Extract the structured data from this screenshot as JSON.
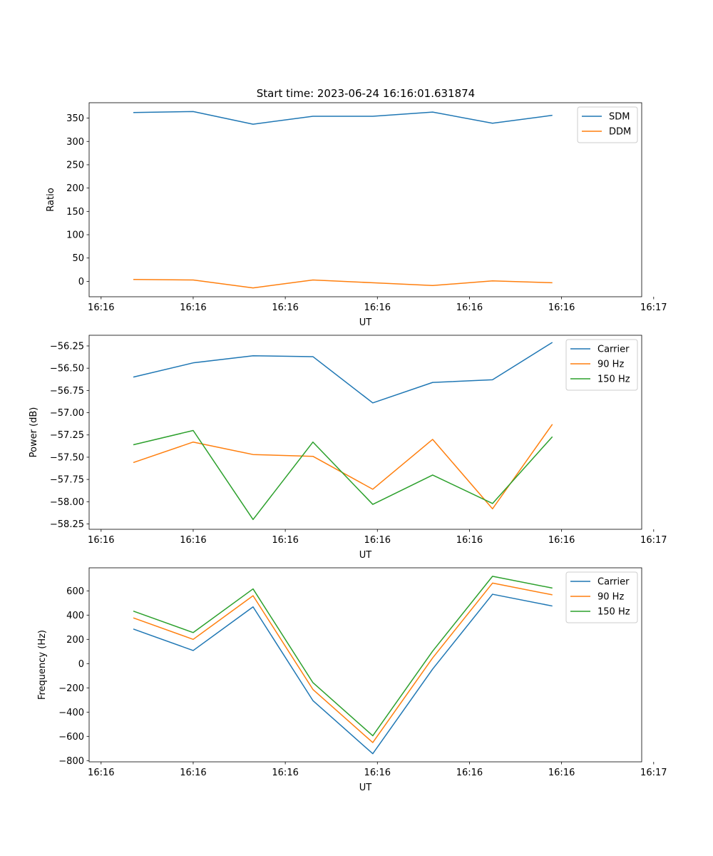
{
  "figure_title": "Start time: 2023-06-24 16:16:01.631874",
  "colors": {
    "c0": "#1f77b4",
    "c1": "#ff7f0e",
    "c2": "#2ca02c"
  },
  "x": [
    1.9,
    2.55,
    3.2,
    3.85,
    4.5,
    5.15,
    5.8,
    6.45
  ],
  "chart_data": [
    {
      "type": "line",
      "title": "Start time: 2023-06-24 16:16:01.631874",
      "xlabel": "UT",
      "ylabel": "Ratio",
      "xlim": [
        1.42,
        7.42
      ],
      "ylim": [
        -33,
        383
      ],
      "xticks": [
        1.55,
        2.55,
        3.55,
        4.55,
        5.55,
        6.55,
        7.55
      ],
      "xticklabels": [
        "16:16",
        "16:16",
        "16:16",
        "16:16",
        "16:16",
        "16:16",
        "16:17"
      ],
      "yticks": [
        0,
        50,
        100,
        150,
        200,
        250,
        300,
        350
      ],
      "yticklabels": [
        "0",
        "50",
        "100",
        "150",
        "200",
        "250",
        "300",
        "350"
      ],
      "legend": "top-right",
      "series": [
        {
          "name": "SDM",
          "color": "#1f77b4",
          "values": [
            362,
            364,
            337,
            354,
            354,
            363,
            339,
            356
          ]
        },
        {
          "name": "DDM",
          "color": "#ff7f0e",
          "values": [
            4,
            3,
            -14,
            3,
            -3,
            -9,
            1,
            -3
          ]
        }
      ]
    },
    {
      "type": "line",
      "xlabel": "UT",
      "ylabel": "Power (dB)",
      "xlim": [
        1.42,
        7.42
      ],
      "ylim": [
        -58.31,
        -56.13
      ],
      "xticks": [
        1.55,
        2.55,
        3.55,
        4.55,
        5.55,
        6.55,
        7.55
      ],
      "xticklabels": [
        "16:16",
        "16:16",
        "16:16",
        "16:16",
        "16:16",
        "16:16",
        "16:17"
      ],
      "yticks": [
        -58.25,
        -58.0,
        -57.75,
        -57.5,
        -57.25,
        -57.0,
        -56.75,
        -56.5,
        -56.25
      ],
      "yticklabels": [
        "−58.25",
        "−58.00",
        "−57.75",
        "−57.50",
        "−57.25",
        "−57.00",
        "−56.75",
        "−56.50",
        "−56.25"
      ],
      "legend": "top-right",
      "series": [
        {
          "name": "Carrier",
          "color": "#1f77b4",
          "values": [
            -56.6,
            -56.44,
            -56.36,
            -56.37,
            -56.89,
            -56.66,
            -56.63,
            -56.21
          ]
        },
        {
          "name": "90 Hz",
          "color": "#ff7f0e",
          "values": [
            -57.56,
            -57.33,
            -57.47,
            -57.49,
            -57.86,
            -57.3,
            -58.08,
            -57.13
          ]
        },
        {
          "name": "150 Hz",
          "color": "#2ca02c",
          "values": [
            -57.36,
            -57.2,
            -58.2,
            -57.33,
            -58.03,
            -57.7,
            -58.02,
            -57.27
          ]
        }
      ]
    },
    {
      "type": "line",
      "xlabel": "UT",
      "ylabel": "Frequency (Hz)",
      "xlim": [
        1.42,
        7.42
      ],
      "ylim": [
        -810,
        790
      ],
      "xticks": [
        1.55,
        2.55,
        3.55,
        4.55,
        5.55,
        6.55,
        7.55
      ],
      "xticklabels": [
        "16:16",
        "16:16",
        "16:16",
        "16:16",
        "16:16",
        "16:16",
        "16:17"
      ],
      "yticks": [
        -800,
        -600,
        -400,
        -200,
        0,
        200,
        400,
        600
      ],
      "yticklabels": [
        "−800",
        "−600",
        "−400",
        "−200",
        "0",
        "200",
        "400",
        "600"
      ],
      "legend": "top-right",
      "series": [
        {
          "name": "Carrier",
          "color": "#1f77b4",
          "values": [
            285,
            108,
            468,
            -305,
            -743,
            -45,
            572,
            475
          ]
        },
        {
          "name": "90 Hz",
          "color": "#ff7f0e",
          "values": [
            377,
            200,
            560,
            -213,
            -651,
            47,
            664,
            567
          ]
        },
        {
          "name": "150 Hz",
          "color": "#2ca02c",
          "values": [
            433,
            256,
            616,
            -157,
            -595,
            103,
            720,
            623
          ]
        }
      ]
    }
  ]
}
